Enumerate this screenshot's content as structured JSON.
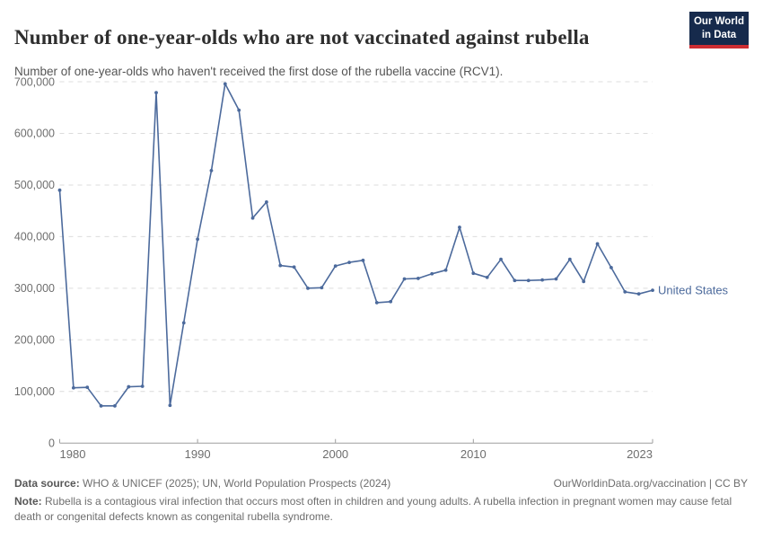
{
  "header": {
    "title": "Number of one-year-olds who are not vaccinated against rubella",
    "subtitle": "Number of one-year-olds who haven't received the first dose of the rubella vaccine (RCV1).",
    "logo": {
      "line1": "Our World",
      "line2": "in Data"
    }
  },
  "chart_data": {
    "type": "line",
    "title": "Number of one-year-olds who are not vaccinated against rubella",
    "xlabel": "",
    "ylabel": "",
    "xlim": [
      1980,
      2023
    ],
    "ylim": [
      0,
      700000
    ],
    "grid": "horizontal-dashed",
    "legend_position": "end-of-line",
    "x_ticks": [
      {
        "year": 1980,
        "label": "1980",
        "anchor": "start"
      },
      {
        "year": 1990,
        "label": "1990",
        "anchor": "middle"
      },
      {
        "year": 2000,
        "label": "2000",
        "anchor": "middle"
      },
      {
        "year": 2010,
        "label": "2010",
        "anchor": "middle"
      },
      {
        "year": 2023,
        "label": "2023",
        "anchor": "end"
      }
    ],
    "y_ticks": [
      {
        "value": 0,
        "label": "0"
      },
      {
        "value": 100000,
        "label": "100,000"
      },
      {
        "value": 200000,
        "label": "200,000"
      },
      {
        "value": 300000,
        "label": "300,000"
      },
      {
        "value": 400000,
        "label": "400,000"
      },
      {
        "value": 500000,
        "label": "500,000"
      },
      {
        "value": 600000,
        "label": "600,000"
      },
      {
        "value": 700000,
        "label": "700,000"
      }
    ],
    "series": [
      {
        "name": "United States",
        "color": "#4C6A9C",
        "x": [
          1980,
          1981,
          1982,
          1983,
          1984,
          1985,
          1986,
          1987,
          1988,
          1989,
          1990,
          1991,
          1992,
          1993,
          1994,
          1995,
          1996,
          1997,
          1998,
          1999,
          2000,
          2001,
          2002,
          2003,
          2004,
          2005,
          2006,
          2007,
          2008,
          2009,
          2010,
          2011,
          2012,
          2013,
          2014,
          2015,
          2016,
          2017,
          2018,
          2019,
          2020,
          2021,
          2022,
          2023
        ],
        "values": [
          490000,
          107000,
          108000,
          72000,
          72000,
          109000,
          110000,
          679000,
          73000,
          233000,
          395000,
          528000,
          696000,
          645000,
          436000,
          467000,
          344000,
          341000,
          300000,
          301000,
          343000,
          350000,
          354000,
          272000,
          274000,
          318000,
          319000,
          328000,
          335000,
          418000,
          329000,
          321000,
          356000,
          315000,
          315000,
          316000,
          318000,
          356000,
          313000,
          386000,
          340000,
          293000,
          289000,
          296000
        ]
      }
    ]
  },
  "footer": {
    "data_source_label": "Data source:",
    "data_source_text": " WHO & UNICEF (2025); UN, World Population Prospects (2024)",
    "link_text": "OurWorldinData.org/vaccination | CC BY",
    "note_label": "Note:",
    "note_text": " Rubella is a contagious viral infection that occurs most often in children and young adults. A rubella infection in pregnant women may cause fetal death or congenital defects known as congenital rubella syndrome."
  },
  "colors": {
    "line": "#4C6A9C",
    "gridline": "#dcdcdc",
    "axis": "#9e9e9e",
    "tick_text": "#6e6e6e",
    "logo_bg": "#162a4c",
    "logo_accent": "#cd2d32"
  }
}
